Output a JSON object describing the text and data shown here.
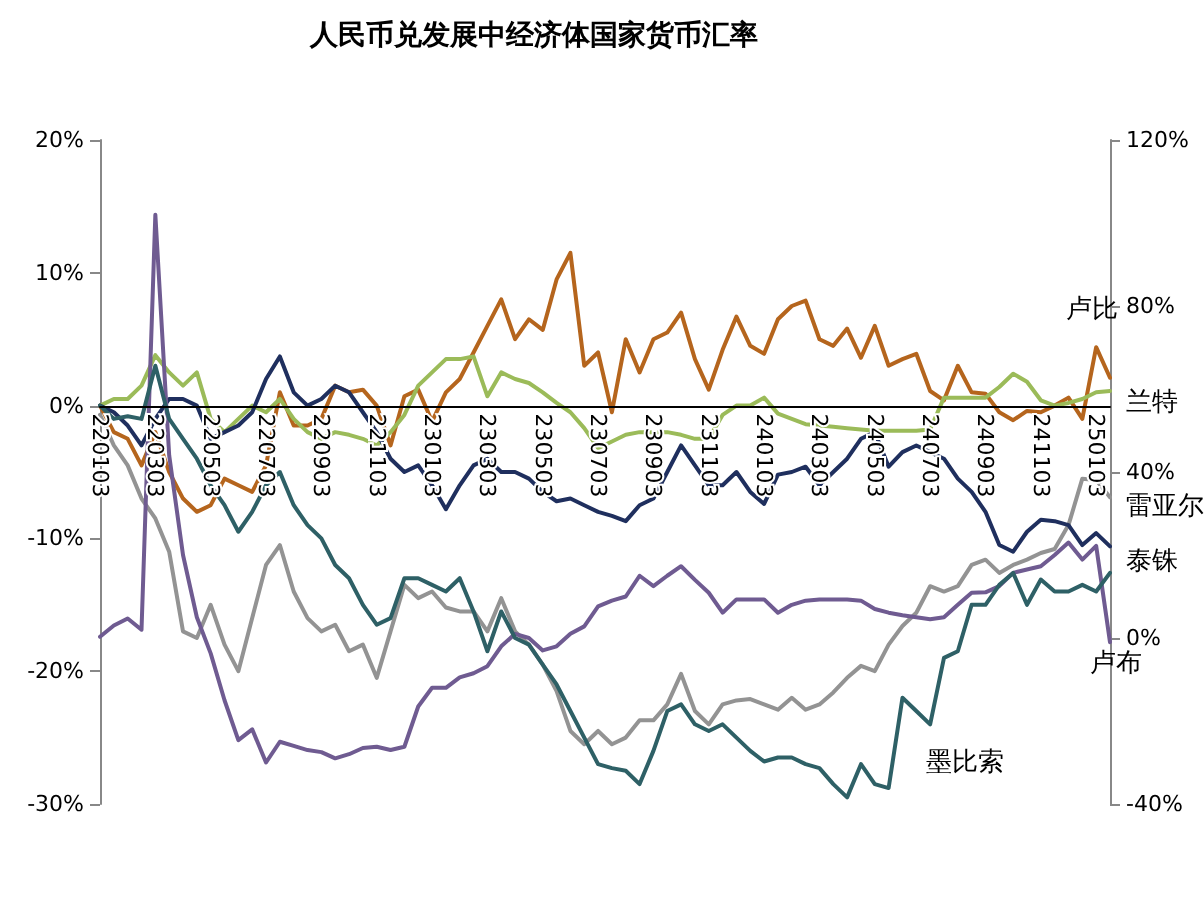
{
  "chart_data": {
    "type": "line",
    "title": "人民币兑发展中经济体国家货币汇率",
    "categories": [
      "220103",
      null,
      null,
      null,
      "220303",
      null,
      null,
      null,
      "220503",
      null,
      null,
      null,
      "220703",
      null,
      null,
      null,
      "220903",
      null,
      null,
      null,
      "221103",
      null,
      null,
      null,
      "230103",
      null,
      null,
      null,
      "230303",
      null,
      null,
      null,
      "230503",
      null,
      null,
      null,
      "230703",
      null,
      null,
      null,
      "230903",
      null,
      null,
      null,
      "231103",
      null,
      null,
      null,
      "240103",
      null,
      null,
      null,
      "240303",
      null,
      null,
      null,
      "240503",
      null,
      null,
      null,
      "240703",
      null,
      null,
      null,
      "240903",
      null,
      null,
      null,
      "241103",
      null,
      null,
      null,
      "250103",
      null
    ],
    "series": [
      {
        "name": "卢比",
        "color": "#b5651d",
        "values": [
          0,
          -2,
          -2.5,
          -4.5,
          -2,
          -5,
          -7,
          -8,
          -7.5,
          -5.5,
          -6,
          -6.5,
          -4.5,
          1,
          -1.5,
          -1.5,
          -1,
          1.5,
          1,
          1.2,
          0,
          -3,
          0.7,
          1.2,
          -1.2,
          1,
          2,
          4,
          6,
          8,
          5,
          6.5,
          5.7,
          9.5,
          11.5,
          3,
          4,
          -0.5,
          5,
          2.5,
          5,
          5.5,
          7,
          3.5,
          1.2,
          4.2,
          6.7,
          4.5,
          3.9,
          6.5,
          7.5,
          7.9,
          5,
          4.5,
          5.8,
          3.6,
          6,
          3,
          3.5,
          3.9,
          1.1,
          0.4,
          3,
          1,
          0.9,
          -0.5,
          -1.1,
          -0.4,
          -0.5,
          0,
          0.6,
          -1,
          4.4,
          2.1
        ]
      },
      {
        "name": "兰特",
        "color": "#9bbb59",
        "values": [
          0,
          0.5,
          0.5,
          1.5,
          3.8,
          2.5,
          1.5,
          2.5,
          -1,
          -2,
          -1,
          0,
          -0.5,
          0.5,
          -1,
          -2,
          -2.5,
          -2,
          -2.2,
          -2.5,
          -3,
          -2,
          -0.7,
          1.5,
          2.5,
          3.5,
          3.5,
          3.7,
          0.7,
          2.5,
          2,
          1.7,
          1,
          0.2,
          -0.5,
          -1.7,
          -3.2,
          -2.7,
          -2.2,
          -2,
          -2,
          -2,
          -2.2,
          -2.5,
          -2.5,
          -0.7,
          0,
          0,
          0.6,
          -0.6,
          -1,
          -1.4,
          -1.5,
          -1.6,
          -1.7,
          -1.8,
          -1.9,
          -1.9,
          -1.9,
          -1.9,
          -1.8,
          0.6,
          0.6,
          0.6,
          0.6,
          1.4,
          2.4,
          1.8,
          0.4,
          0,
          0.2,
          0.5,
          1,
          1.1
        ]
      },
      {
        "name": "雷亚尔",
        "color": "#939393",
        "values": [
          -0.7,
          -3,
          -4.5,
          -7,
          -8.5,
          -11,
          -17,
          -17.5,
          -15,
          -18,
          -20,
          -16,
          -12,
          -10.5,
          -14,
          -16,
          -17,
          -16.5,
          -18.5,
          -18,
          -20.5,
          -17,
          -13.5,
          -14.5,
          -14,
          -15.2,
          -15.5,
          -15.5,
          -17,
          -14.5,
          -17,
          -18,
          -19.5,
          -21.5,
          -24.5,
          -25.5,
          -24.5,
          -25.5,
          -25,
          -23.7,
          -23.7,
          -22.5,
          -20.2,
          -23,
          -24,
          -22.5,
          -22.2,
          -22.1,
          -22.5,
          -22.9,
          -22,
          -22.9,
          -22.5,
          -21.6,
          -20.5,
          -19.6,
          -20,
          -18,
          -16.6,
          -15.6,
          -13.6,
          -14,
          -13.6,
          -12,
          -11.6,
          -12.6,
          -12,
          -11.6,
          -11.1,
          -10.8,
          -9,
          -5.5,
          -5.6,
          -6.9
        ]
      },
      {
        "name": "泰铢",
        "color": "#1f2f5e",
        "values": [
          0,
          -0.5,
          -1.5,
          -3,
          -1,
          0.5,
          0.5,
          0,
          -2.5,
          -2,
          -1.5,
          -0.5,
          2,
          3.7,
          1,
          0,
          0.5,
          1.5,
          1,
          -0.5,
          -2,
          -4,
          -5,
          -4.5,
          -6,
          -7.8,
          -6,
          -4.5,
          -4,
          -5,
          -5,
          -5.5,
          -6.5,
          -7.2,
          -7,
          -7.5,
          -8,
          -8.3,
          -8.7,
          -7.5,
          -7,
          -5,
          -3,
          -4.5,
          -6,
          -6,
          -5,
          -6.5,
          -7.4,
          -5.2,
          -5,
          -4.6,
          -6,
          -5,
          -4,
          -2.5,
          -2,
          -4.6,
          -3.5,
          -3,
          -3.5,
          -4,
          -5.5,
          -6.5,
          -8,
          -10.5,
          -11,
          -9.5,
          -8.6,
          -8.7,
          -9,
          -10.5,
          -9.6,
          -10.6
        ]
      },
      {
        "name": "卢布",
        "color": "#6f5b91",
        "axis": "y2",
        "values": [
          0.3,
          3,
          4.7,
          2,
          102,
          44,
          20,
          5,
          -3.7,
          -15,
          -24.6,
          -22,
          -30,
          -25,
          -26,
          -27,
          -27.5,
          -29,
          -28,
          -26.5,
          -26.2,
          -27,
          -26.2,
          -16.5,
          -12,
          -12,
          -9.5,
          -8.5,
          -6.8,
          -2,
          1,
          0,
          -3,
          -2,
          1,
          2.8,
          7.6,
          9,
          10,
          15,
          12.5,
          15,
          17.3,
          14,
          10.9,
          6.1,
          9.3,
          9.3,
          9.3,
          6.1,
          8,
          9,
          9.3,
          9.3,
          9.3,
          9,
          7,
          6.1,
          5.5,
          5,
          4.5,
          5,
          8,
          10.9,
          11,
          12.5,
          15.7,
          16.5,
          17.3,
          20,
          23,
          18.9,
          22.2,
          -1
        ]
      },
      {
        "name": "墨比索",
        "color": "#2e6066",
        "values": [
          0,
          -1,
          -0.8,
          -1,
          3,
          -1,
          -2.5,
          -4,
          -6,
          -7.5,
          -9.5,
          -8,
          -6,
          -5,
          -7.5,
          -9,
          -10,
          -12,
          -13,
          -15,
          -16.5,
          -16,
          -13,
          -13,
          -13.5,
          -14,
          -13,
          -15.5,
          -18.5,
          -15.5,
          -17.5,
          -18,
          -19.5,
          -21,
          -23,
          -25,
          -27,
          -27.3,
          -27.5,
          -28.5,
          -26,
          -23,
          -22.5,
          -24,
          -24.5,
          -24,
          -25,
          -26,
          -26.8,
          -26.5,
          -26.5,
          -27,
          -27.3,
          -28.5,
          -29.5,
          -27,
          -28.5,
          -28.8,
          -22,
          -23,
          -24,
          -19,
          -18.5,
          -15,
          -15,
          -13.5,
          -12.6,
          -15,
          -13.1,
          -14,
          -14,
          -13.5,
          -14,
          -12.6
        ]
      }
    ],
    "ylim": [
      -30,
      20
    ],
    "yticks": [
      {
        "value": -30,
        "label": "-30%"
      },
      {
        "value": -20,
        "label": "-20%"
      },
      {
        "value": -10,
        "label": "-10%"
      },
      {
        "value": 0,
        "label": "0%"
      },
      {
        "value": 10,
        "label": "10%"
      },
      {
        "value": 20,
        "label": "20%"
      }
    ],
    "y2lim": [
      -40,
      120
    ],
    "y2ticks": [
      {
        "value": -40,
        "label": "-40%"
      },
      {
        "value": 0,
        "label": "0%"
      },
      {
        "value": 40,
        "label": "40%"
      },
      {
        "value": 80,
        "label": "80%"
      },
      {
        "value": 120,
        "label": "120%"
      }
    ],
    "grid": false,
    "legend": false,
    "marker": "none",
    "line_style": "solid"
  }
}
